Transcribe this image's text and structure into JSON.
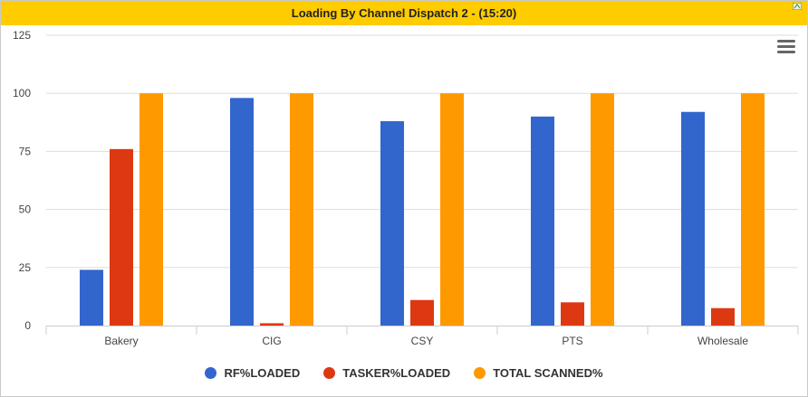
{
  "header": {
    "title": "Loading By Channel Dispatch 2 - (15:20)"
  },
  "menu": {
    "icon": "hamburger-menu-icon"
  },
  "colors": {
    "title_bar": "#ffcc00",
    "series": [
      "#3366cc",
      "#dc3912",
      "#ff9900"
    ]
  },
  "chart_data": {
    "type": "bar",
    "categories": [
      "Bakery",
      "CIG",
      "CSY",
      "PTS",
      "Wholesale"
    ],
    "series": [
      {
        "name": "RF%LOADED",
        "values": [
          24,
          98,
          88,
          90,
          92
        ]
      },
      {
        "name": "TASKER%LOADED",
        "values": [
          76,
          1,
          11,
          10,
          7.5
        ]
      },
      {
        "name": "TOTAL SCANNED%",
        "values": [
          100,
          100,
          100,
          100,
          100
        ]
      }
    ],
    "yticks": [
      0,
      25,
      50,
      75,
      100,
      125
    ],
    "ylim": [
      0,
      125
    ],
    "grid": true,
    "legend": "bottom",
    "title": "",
    "xlabel": "",
    "ylabel": ""
  }
}
